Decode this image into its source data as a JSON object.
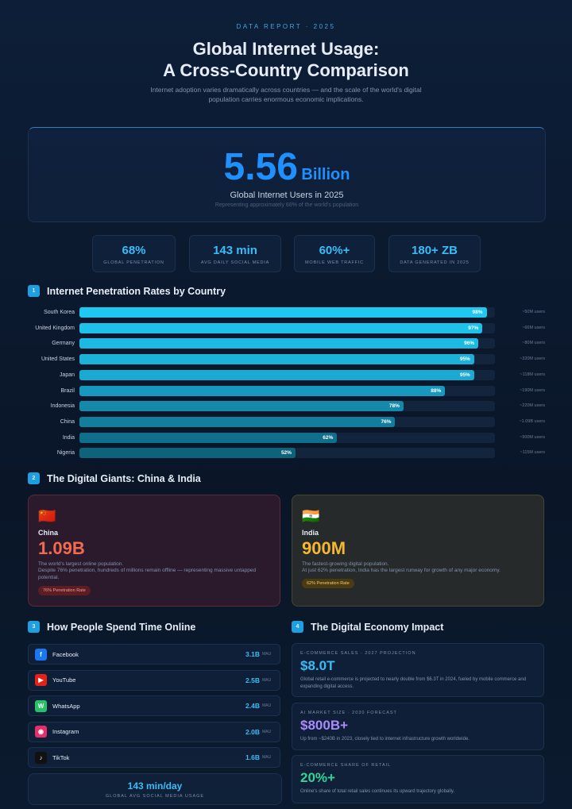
{
  "header": {
    "eyebrow": "DATA REPORT · 2025",
    "title_line1": "Global Internet Usage:",
    "title_line2": "A Cross-Country Comparison",
    "subtitle": "Internet adoption varies dramatically across countries — and the scale of the world's digital population carries enormous economic implications."
  },
  "hero": {
    "number": "5.56",
    "unit": "Billion",
    "label": "Global Internet Users in 2025",
    "note": "Representing approximately 68% of the world's population"
  },
  "stats": [
    {
      "value": "68%",
      "label": "GLOBAL PENETRATION"
    },
    {
      "value": "143 min",
      "label": "AVG DAILY SOCIAL MEDIA"
    },
    {
      "value": "60%+",
      "label": "MOBILE WEB TRAFFIC"
    },
    {
      "value": "180+ ZB",
      "label": "DATA GENERATED IN 2025"
    }
  ],
  "sections": [
    {
      "number": "1",
      "title": "Internet Penetration Rates by Country"
    },
    {
      "number": "2",
      "title": "The Digital Giants: China & India"
    },
    {
      "number": "3",
      "title": "How People Spend Time Online"
    },
    {
      "number": "4",
      "title": "The Digital Economy Impact"
    }
  ],
  "chart_data": {
    "type": "bar",
    "orientation": "horizontal",
    "categories": [
      "South Korea",
      "United Kingdom",
      "Germany",
      "United States",
      "Japan",
      "Brazil",
      "Indonesia",
      "China",
      "India",
      "Nigeria"
    ],
    "values": [
      98,
      97,
      96,
      95,
      95,
      88,
      78,
      76,
      62,
      52
    ],
    "value_labels": [
      "98%",
      "97%",
      "96%",
      "95%",
      "95%",
      "88%",
      "78%",
      "76%",
      "62%",
      "52%"
    ],
    "users": [
      "~50M users",
      "~66M users",
      "~80M users",
      "~320M users",
      "~118M users",
      "~190M users",
      "~220M users",
      "~1.09B users",
      "~900M users",
      "~115M users"
    ],
    "xlim": [
      0,
      100
    ],
    "colors": [
      "#1fc8f0",
      "#1dc1ea",
      "#1cb9e2",
      "#1bb1d9",
      "#1aa9d1",
      "#1799bf",
      "#1589a9",
      "#137e9c",
      "#106f8a",
      "#0e637b"
    ]
  },
  "giants": [
    {
      "flag": "🇨🇳",
      "name": "China",
      "value": "1.09B",
      "line1": "The world's largest online population.",
      "line2": "Despite 76% penetration, hundreds of millions remain offline — representing massive untapped potential.",
      "badge": "76% Penetration Rate"
    },
    {
      "flag": "🇮🇳",
      "name": "India",
      "value": "900M",
      "line1": "The fastest-growing digital population.",
      "line2": "At just 62% penetration, India has the largest runway for growth of any major economy.",
      "badge": "62% Penetration Rate"
    }
  ],
  "apps": {
    "unit": "MAU",
    "items": [
      {
        "icon": "f",
        "name": "Facebook",
        "value": "3.1B",
        "color": "#1877f2"
      },
      {
        "icon": "▶",
        "name": "YouTube",
        "value": "2.5B",
        "color": "#e62117"
      },
      {
        "icon": "W",
        "name": "WhatsApp",
        "value": "2.4B",
        "color": "#25c366"
      },
      {
        "icon": "◉",
        "name": "Instagram",
        "value": "2.0B",
        "color": "#e1306c"
      },
      {
        "icon": "♪",
        "name": "TikTok",
        "value": "1.6B",
        "color": "#111111"
      }
    ],
    "footer_value": "143 min/day",
    "footer_label": "GLOBAL AVG SOCIAL MEDIA USAGE"
  },
  "economy": [
    {
      "label": "E-COMMERCE SALES · 2027 PROJECTION",
      "value": "$8.0T",
      "text": "Global retail e-commerce is projected to nearly double from $6.3T in 2024, fueled by mobile commerce and expanding digital access.",
      "color": "#38bdf8"
    },
    {
      "label": "AI MARKET SIZE · 2030 FORECAST",
      "value": "$800B+",
      "text": "Up from ~$240B in 2023, closely tied to internet infrastructure growth worldwide.",
      "color": "#a78bfa"
    },
    {
      "label": "E-COMMERCE SHARE OF RETAIL",
      "value": "20%+",
      "text": "Online's share of total retail sales continues its upward trajectory globally.",
      "color": "#34d399"
    }
  ]
}
